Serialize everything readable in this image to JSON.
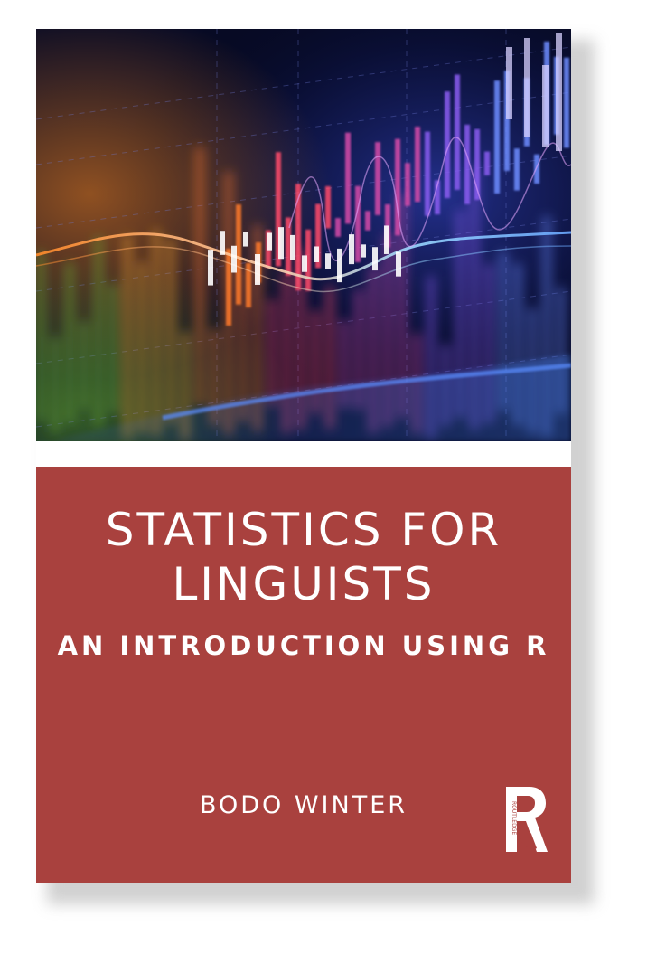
{
  "cover": {
    "title": "STATISTICS FOR LINGUISTS",
    "subtitle": "AN INTRODUCTION USING R",
    "author": "BODO WINTER",
    "publisher": "ROUTLEDGE"
  },
  "colors": {
    "panel": "#a9413e",
    "art_background": "#070a25",
    "text": "#ffffff"
  },
  "icons": {
    "publisher_logo": "routledge-logo",
    "cover_art": "financial-chart-artwork"
  }
}
